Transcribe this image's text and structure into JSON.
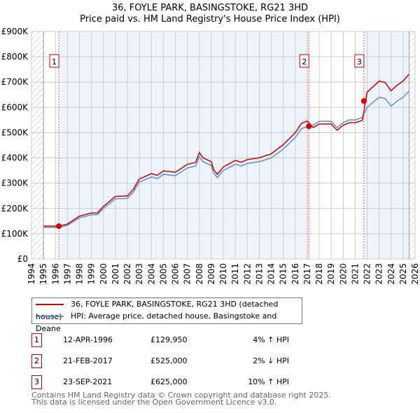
{
  "title": "36, FOYLE PARK, BASINGSTOKE, RG21 3HD",
  "subtitle": "Price paid vs. HM Land Registry's House Price Index (HPI)",
  "chart_data": {
    "type": "line",
    "xlim": [
      1994,
      2026
    ],
    "ylim": [
      0,
      900000
    ],
    "yticks": [
      0,
      100000,
      200000,
      300000,
      400000,
      500000,
      600000,
      700000,
      800000,
      900000
    ],
    "ytick_labels": [
      "£0",
      "£100K",
      "£200K",
      "£300K",
      "£400K",
      "£500K",
      "£600K",
      "£700K",
      "£800K",
      "£900K"
    ],
    "xticks": [
      1994,
      1995,
      1996,
      1997,
      1998,
      1999,
      2000,
      2001,
      2002,
      2003,
      2004,
      2005,
      2006,
      2007,
      2008,
      2009,
      2010,
      2011,
      2012,
      2013,
      2014,
      2015,
      2016,
      2017,
      2018,
      2019,
      2020,
      2021,
      2022,
      2023,
      2024,
      2025,
      2026
    ],
    "hatched_ranges": [
      [
        1994,
        1995
      ],
      [
        2025.5,
        2026
      ]
    ],
    "series": [
      {
        "name": "HPI: Average price, detached house, Basingstoke and Deane",
        "color": "#5b8fd6",
        "x": [
          1995,
          1996.3,
          1997,
          1998,
          1999,
          1999.5,
          2000,
          2001,
          2002,
          2002.5,
          2003,
          2003.3,
          2004,
          2004.5,
          2005,
          2006,
          2007,
          2007.7,
          2008,
          2008.3,
          2009,
          2009.2,
          2009.5,
          2010,
          2011,
          2011.5,
          2012,
          2013,
          2014,
          2015,
          2016,
          2016.5,
          2017,
          2017.5,
          2018,
          2019,
          2019.5,
          2020,
          2020.5,
          2021,
          2021.6,
          2022,
          2022.5,
          2023,
          2023.5,
          2024,
          2024.5,
          2025,
          2025.5
        ],
        "y": [
          125000,
          125000,
          133000,
          163000,
          175000,
          175000,
          200000,
          238000,
          240000,
          265000,
          305000,
          310000,
          325000,
          318000,
          335000,
          330000,
          360000,
          368000,
          405000,
          385000,
          370000,
          340000,
          322000,
          350000,
          375000,
          368000,
          378000,
          385000,
          400000,
          435000,
          480000,
          515000,
          525000,
          530000,
          545000,
          545000,
          520000,
          540000,
          550000,
          550000,
          560000,
          600000,
          620000,
          640000,
          635000,
          605000,
          625000,
          640000,
          665000
        ]
      },
      {
        "name": "36, FOYLE PARK, BASINGSTOKE, RG21 3HD (detached house)",
        "color": "#cc0000",
        "factors": [
          [
            2017.14,
            1.04
          ],
          [
            2021.73,
            0.98
          ],
          [
            2027,
            1.1
          ]
        ]
      }
    ],
    "sales": [
      {
        "id": "1",
        "x": 1996.28,
        "y": 129950
      },
      {
        "id": "2",
        "x": 2017.14,
        "y": 525000
      },
      {
        "id": "3",
        "x": 2021.73,
        "y": 625000
      }
    ]
  },
  "legend": {
    "property": "36, FOYLE PARK, BASINGSTOKE, RG21 3HD (detached house)",
    "hpi": "HPI: Average price, detached house, Basingstoke and Deane"
  },
  "sales_table": [
    {
      "num": "1",
      "date": "12-APR-1996",
      "price": "£129,950",
      "hpi": "4% ↑ HPI"
    },
    {
      "num": "2",
      "date": "21-FEB-2017",
      "price": "£525,000",
      "hpi": "2% ↓ HPI"
    },
    {
      "num": "3",
      "date": "23-SEP-2021",
      "price": "£625,000",
      "hpi": "10% ↑ HPI"
    }
  ],
  "footer": [
    "Contains HM Land Registry data © Crown copyright and database right 2025.",
    "This data is licensed under the Open Government Licence v3.0."
  ]
}
